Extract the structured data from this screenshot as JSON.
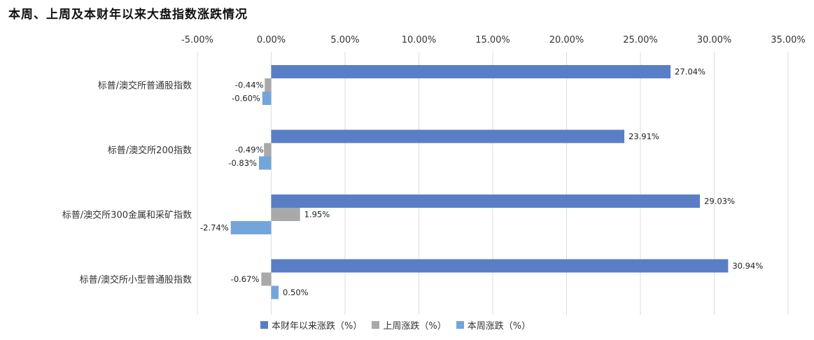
{
  "title": "本周、上周及本财年以来大盘指数涨跌情况",
  "chart_data": {
    "type": "bar",
    "orientation": "horizontal",
    "xlim": [
      -5,
      35
    ],
    "x_ticks": [
      -5,
      0,
      5,
      10,
      15,
      20,
      25,
      30,
      35
    ],
    "x_tick_labels": [
      "-5.00%",
      "0.00%",
      "5.00%",
      "10.00%",
      "15.00%",
      "20.00%",
      "25.00%",
      "30.00%",
      "35.00%"
    ],
    "grid": true,
    "legend_position": "bottom",
    "categories": [
      "标普/澳交所普通股指数",
      "标普/澳交所200指数",
      "标普/澳交所300金属和采矿指数",
      "标普/澳交所小型普通股指数"
    ],
    "series": [
      {
        "name": "本财年以来涨跌（%）",
        "color": "#5a7ec6",
        "values": [
          27.04,
          23.91,
          29.03,
          30.94
        ],
        "labels": [
          "27.04%",
          "23.91%",
          "29.03%",
          "30.94%"
        ]
      },
      {
        "name": "上周涨跌（%）",
        "color": "#a9a9a9",
        "values": [
          -0.44,
          -0.49,
          1.95,
          -0.67
        ],
        "labels": [
          "-0.44%",
          "-0.49%",
          "1.95%",
          "-0.67%"
        ]
      },
      {
        "name": "本周涨跌（%）",
        "color": "#74a5da",
        "values": [
          -0.6,
          -0.83,
          -2.74,
          0.5
        ],
        "labels": [
          "-0.60%",
          "-0.83%",
          "-2.74%",
          "0.50%"
        ]
      }
    ]
  }
}
